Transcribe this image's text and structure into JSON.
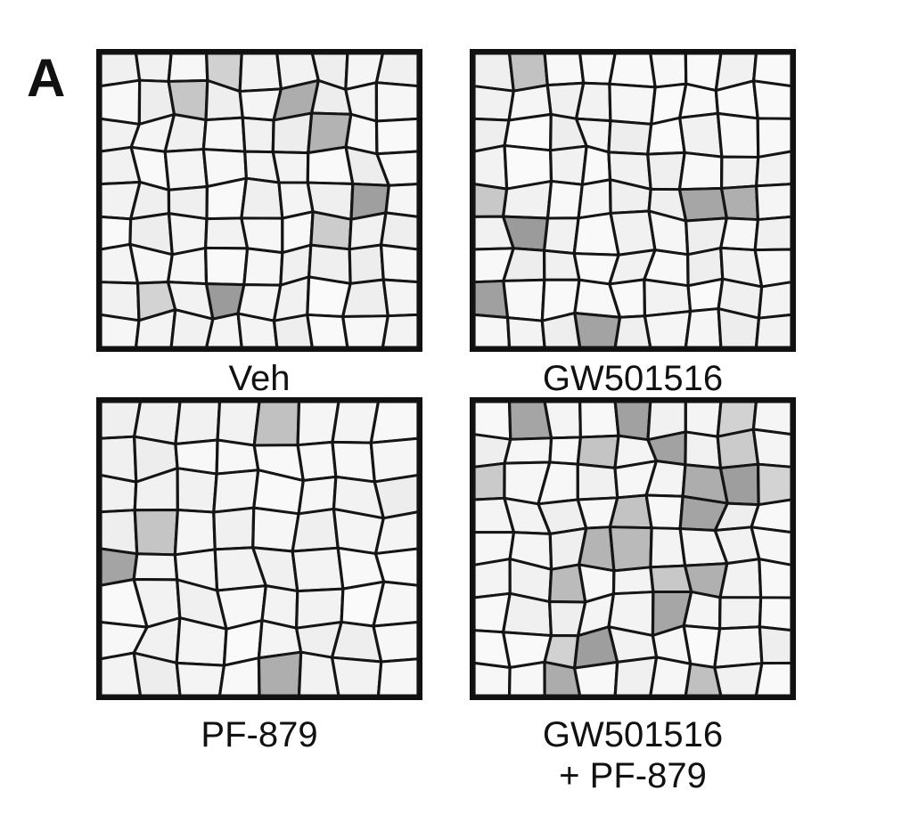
{
  "figure": {
    "panel_letter": "A",
    "panels": [
      {
        "caption_line1": "Veh",
        "caption_line2": ""
      },
      {
        "caption_line1": "GW501516",
        "caption_line2": ""
      },
      {
        "caption_line1": "PF-879",
        "caption_line2": ""
      },
      {
        "caption_line1": "GW501516",
        "caption_line2": "+ PF-879"
      }
    ]
  },
  "colors": {
    "border": "#111111",
    "membrane": "#151515",
    "fiber_light": "#fafafa",
    "fiber_dark": "#8a8a8a"
  }
}
